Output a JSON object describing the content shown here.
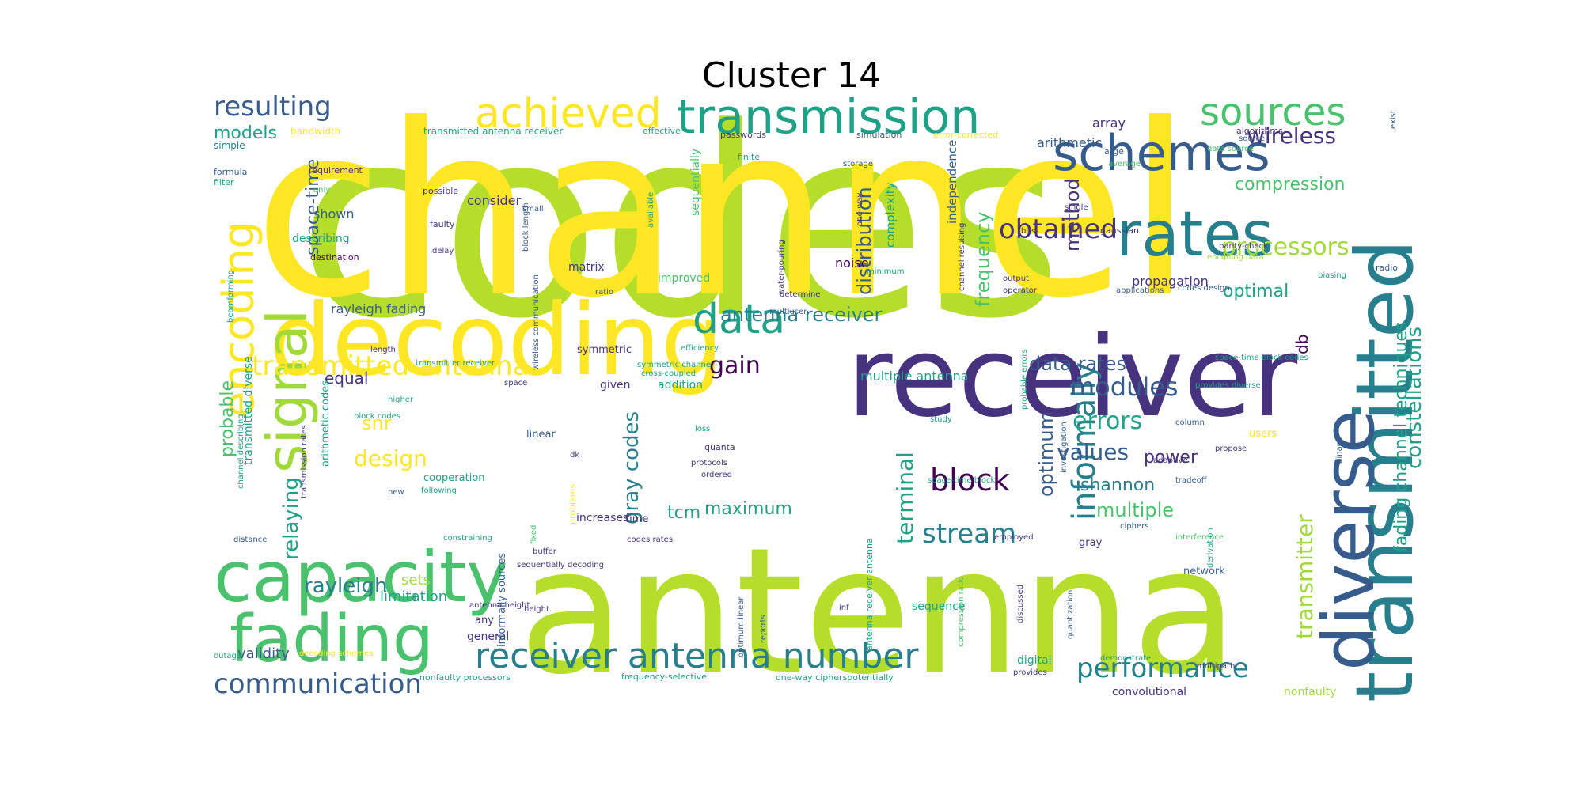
{
  "title": "Cluster 14",
  "colors": {
    "c1": "#440154",
    "c2": "#46327e",
    "c3": "#365c8d",
    "c4": "#277f8e",
    "c5": "#1fa187",
    "c6": "#4ac16d",
    "c7": "#a0da39",
    "c8": "#b5de2b",
    "c9": "#fde725"
  },
  "words": [
    {
      "text": "codes",
      "color": "c8"
    },
    {
      "text": "channel",
      "color": "c9"
    },
    {
      "text": "antenna",
      "color": "c8"
    },
    {
      "text": "receiver",
      "color": "c2"
    },
    {
      "text": "decoding",
      "color": "c9"
    },
    {
      "text": "transmitted",
      "color": "c4"
    },
    {
      "text": "diverse",
      "color": "c3"
    },
    {
      "text": "capacity",
      "color": "c6"
    },
    {
      "text": "fading",
      "color": "c6"
    },
    {
      "text": "rates",
      "color": "c4"
    },
    {
      "text": "transmission",
      "color": "c5"
    },
    {
      "text": "schemes",
      "color": "c3"
    },
    {
      "text": "achieved",
      "color": "c9"
    },
    {
      "text": "signal",
      "color": "c7"
    },
    {
      "text": "encoding",
      "color": "c9"
    },
    {
      "text": "sources",
      "color": "c6"
    },
    {
      "text": "receiver antenna number",
      "color": "c4"
    },
    {
      "text": "data",
      "color": "c5"
    },
    {
      "text": "transmitted antenna",
      "color": "c9"
    },
    {
      "text": "block",
      "color": "c1"
    },
    {
      "text": "communication",
      "color": "c3"
    },
    {
      "text": "resulting",
      "color": "c3"
    },
    {
      "text": "processors",
      "color": "c7"
    },
    {
      "text": "obtained",
      "color": "c2"
    },
    {
      "text": "informally",
      "color": "c4"
    },
    {
      "text": "performance",
      "color": "c4"
    },
    {
      "text": "stream",
      "color": "c4"
    },
    {
      "text": "modules",
      "color": "c3"
    },
    {
      "text": "errors",
      "color": "c5"
    },
    {
      "text": "values",
      "color": "c3"
    },
    {
      "text": "relaying",
      "color": "c5"
    },
    {
      "text": "wireless",
      "color": "c2"
    },
    {
      "text": "gain",
      "color": "c1"
    },
    {
      "text": "design",
      "color": "c9"
    },
    {
      "text": "terminal",
      "color": "c5"
    },
    {
      "text": "rayleigh",
      "color": "c4"
    },
    {
      "text": "distribution",
      "color": "c3"
    },
    {
      "text": "compression",
      "color": "c6"
    },
    {
      "text": "transmitter",
      "color": "c7"
    },
    {
      "text": "optimum",
      "color": "c3"
    },
    {
      "text": "maximum",
      "color": "c5"
    },
    {
      "text": "gray codes",
      "color": "c4"
    },
    {
      "text": "shannon",
      "color": "c4"
    },
    {
      "text": "multiple",
      "color": "c6"
    },
    {
      "text": "constellations",
      "color": "c5"
    },
    {
      "text": "fading channel techniques",
      "color": "c5"
    },
    {
      "text": "frequency",
      "color": "c6"
    },
    {
      "text": "models",
      "color": "c5"
    },
    {
      "text": "method",
      "color": "c2"
    },
    {
      "text": "antenna receiver",
      "color": "c4"
    },
    {
      "text": "data rates",
      "color": "c3"
    },
    {
      "text": "optimal",
      "color": "c5"
    },
    {
      "text": "space-time",
      "color": "c3"
    },
    {
      "text": "power",
      "color": "c2"
    },
    {
      "text": "snr",
      "color": "c9"
    },
    {
      "text": "probable",
      "color": "c6"
    },
    {
      "text": "equal",
      "color": "c2"
    },
    {
      "text": "tcm",
      "color": "c5"
    },
    {
      "text": "db",
      "color": "c1"
    },
    {
      "text": "limitation",
      "color": "c5"
    },
    {
      "text": "validity",
      "color": "c3"
    },
    {
      "text": "sets",
      "color": "c7"
    },
    {
      "text": "shown",
      "color": "c3"
    },
    {
      "text": "consider",
      "color": "c2"
    },
    {
      "text": "noise",
      "color": "c1"
    },
    {
      "text": "arithmetic",
      "color": "c3"
    },
    {
      "text": "array",
      "color": "c2"
    },
    {
      "text": "propagation",
      "color": "c2"
    },
    {
      "text": "multiple antenna",
      "color": "c5"
    },
    {
      "text": "rayleigh fading",
      "color": "c3"
    },
    {
      "text": "independence",
      "color": "c3"
    },
    {
      "text": "complexity",
      "color": "c5"
    },
    {
      "text": "sequentially",
      "color": "c6"
    },
    {
      "text": "matrix",
      "color": "c2"
    },
    {
      "text": "improved",
      "color": "c6"
    },
    {
      "text": "addition",
      "color": "c5"
    },
    {
      "text": "given",
      "color": "c2"
    },
    {
      "text": "increases",
      "color": "c2"
    },
    {
      "text": "general",
      "color": "c2"
    },
    {
      "text": "digital",
      "color": "c5"
    },
    {
      "text": "convolutional",
      "color": "c2"
    },
    {
      "text": "nonfaulty",
      "color": "c7"
    },
    {
      "text": "sequence",
      "color": "c5"
    },
    {
      "text": "describing",
      "color": "c5"
    },
    {
      "text": "transmitted diverse",
      "color": "c5"
    },
    {
      "text": "arithmetic codes",
      "color": "c5"
    },
    {
      "text": "time",
      "color": "c2"
    },
    {
      "text": "linear",
      "color": "c3"
    },
    {
      "text": "cooperation",
      "color": "c5"
    },
    {
      "text": "any",
      "color": "c2"
    },
    {
      "text": "informally sources",
      "color": "c3"
    },
    {
      "text": "symmetric",
      "color": "c2"
    },
    {
      "text": "users",
      "color": "c9"
    },
    {
      "text": "network",
      "color": "c3"
    },
    {
      "text": "gray",
      "color": "c2"
    },
    {
      "text": "simple",
      "color": "c4"
    },
    {
      "text": "bandwidth",
      "color": "c9"
    },
    {
      "text": "transmitted antenna receiver",
      "color": "c5"
    },
    {
      "text": "effective",
      "color": "c5"
    },
    {
      "text": "passwords",
      "color": "c2"
    },
    {
      "text": "simulation",
      "color": "c3"
    },
    {
      "text": "error-corrected",
      "color": "c9"
    },
    {
      "text": "algorithms",
      "color": "c2"
    },
    {
      "text": "exist",
      "color": "c3"
    },
    {
      "text": "large",
      "color": "c3"
    },
    {
      "text": "radio",
      "color": "c3"
    },
    {
      "text": "formula",
      "color": "c3"
    },
    {
      "text": "filter",
      "color": "c5"
    },
    {
      "text": "requirement",
      "color": "c2"
    },
    {
      "text": "only",
      "color": "c6"
    },
    {
      "text": "possible",
      "color": "c2"
    },
    {
      "text": "faulty",
      "color": "c2"
    },
    {
      "text": "destination",
      "color": "c1"
    },
    {
      "text": "delay",
      "color": "c2"
    },
    {
      "text": "ratio",
      "color": "c3"
    },
    {
      "text": "block length",
      "color": "c3"
    },
    {
      "text": "small",
      "color": "c3"
    },
    {
      "text": "available",
      "color": "c5"
    },
    {
      "text": "water-pouring",
      "color": "c2"
    },
    {
      "text": "one-way",
      "color": "c2"
    },
    {
      "text": "channel resulting",
      "color": "c2"
    },
    {
      "text": "single",
      "color": "c2"
    },
    {
      "text": "bits",
      "color": "c2"
    },
    {
      "text": "gaussian",
      "color": "c2"
    },
    {
      "text": "parity-check",
      "color": "c2"
    },
    {
      "text": "encoding data",
      "color": "c7"
    },
    {
      "text": "output",
      "color": "c2"
    },
    {
      "text": "operator",
      "color": "c2"
    },
    {
      "text": "applications",
      "color": "c3"
    },
    {
      "text": "codes design",
      "color": "c3"
    },
    {
      "text": "determine",
      "color": "c2"
    },
    {
      "text": "multiuser",
      "color": "c3"
    },
    {
      "text": "efficiency",
      "color": "c5"
    },
    {
      "text": "space-time block codes",
      "color": "c5"
    },
    {
      "text": "provides diverse",
      "color": "c5"
    },
    {
      "text": "probable errors",
      "color": "c5"
    },
    {
      "text": "study",
      "color": "c5"
    },
    {
      "text": "loss",
      "color": "c5"
    },
    {
      "text": "quanta",
      "color": "c2"
    },
    {
      "text": "protocols",
      "color": "c2"
    },
    {
      "text": "ordered",
      "color": "c2"
    },
    {
      "text": "adaptive",
      "color": "c2"
    },
    {
      "text": "propose",
      "color": "c2"
    },
    {
      "text": "column",
      "color": "c3"
    },
    {
      "text": "tradeoff",
      "color": "c3"
    },
    {
      "text": "space-time block",
      "color": "c5"
    },
    {
      "text": "ciphers",
      "color": "c3"
    },
    {
      "text": "interference",
      "color": "c6"
    },
    {
      "text": "employed",
      "color": "c2"
    },
    {
      "text": "codes rates",
      "color": "c2"
    },
    {
      "text": "buffer",
      "color": "c2"
    },
    {
      "text": "sequentially decoding",
      "color": "c2"
    },
    {
      "text": "fixed",
      "color": "c6"
    },
    {
      "text": "problems",
      "color": "c9"
    },
    {
      "text": "new",
      "color": "c3"
    },
    {
      "text": "block codes",
      "color": "c5"
    },
    {
      "text": "following",
      "color": "c5"
    },
    {
      "text": "space",
      "color": "c2"
    },
    {
      "text": "higher",
      "color": "c5"
    },
    {
      "text": "transmitter receiver",
      "color": "c5"
    },
    {
      "text": "symmetric channel",
      "color": "c5"
    },
    {
      "text": "cross-coupled",
      "color": "c5"
    },
    {
      "text": "length",
      "color": "c2"
    },
    {
      "text": "channel describing",
      "color": "c5"
    },
    {
      "text": "distance",
      "color": "c3"
    },
    {
      "text": "outage",
      "color": "c5"
    },
    {
      "text": "decoding schemes",
      "color": "c9"
    },
    {
      "text": "antenna height",
      "color": "c2"
    },
    {
      "text": "height",
      "color": "c2"
    },
    {
      "text": "nonfaulty processors",
      "color": "c5"
    },
    {
      "text": "frequency-selective",
      "color": "c5"
    },
    {
      "text": "one-way cipherspotentially",
      "color": "c5"
    },
    {
      "text": "reports",
      "color": "c3"
    },
    {
      "text": "optimum linear",
      "color": "c3"
    },
    {
      "text": "inf",
      "color": "c2"
    },
    {
      "text": "antenna receiver antenna",
      "color": "c5"
    },
    {
      "text": "compression ratio",
      "color": "c6"
    },
    {
      "text": "discussed",
      "color": "c2"
    },
    {
      "text": "quantization",
      "color": "c3"
    },
    {
      "text": "demonstrate",
      "color": "c5"
    },
    {
      "text": "provides",
      "color": "c2"
    },
    {
      "text": "multipath",
      "color": "c2"
    },
    {
      "text": "derivation",
      "color": "c5"
    },
    {
      "text": "constraining",
      "color": "c5"
    },
    {
      "text": "dk",
      "color": "c2"
    },
    {
      "text": "transmission rates",
      "color": "c2"
    },
    {
      "text": "binary",
      "color": "c3"
    },
    {
      "text": "beamforming",
      "color": "c5"
    },
    {
      "text": "minimum",
      "color": "c5"
    },
    {
      "text": "wireless communication",
      "color": "c3"
    },
    {
      "text": "investigation",
      "color": "c3"
    },
    {
      "text": "biasing",
      "color": "c5"
    },
    {
      "text": "finite",
      "color": "c5"
    },
    {
      "text": "average",
      "color": "c6"
    },
    {
      "text": "storage",
      "color": "c3"
    },
    {
      "text": "source",
      "color": "c3"
    },
    {
      "text": "data source",
      "color": "c6"
    }
  ]
}
